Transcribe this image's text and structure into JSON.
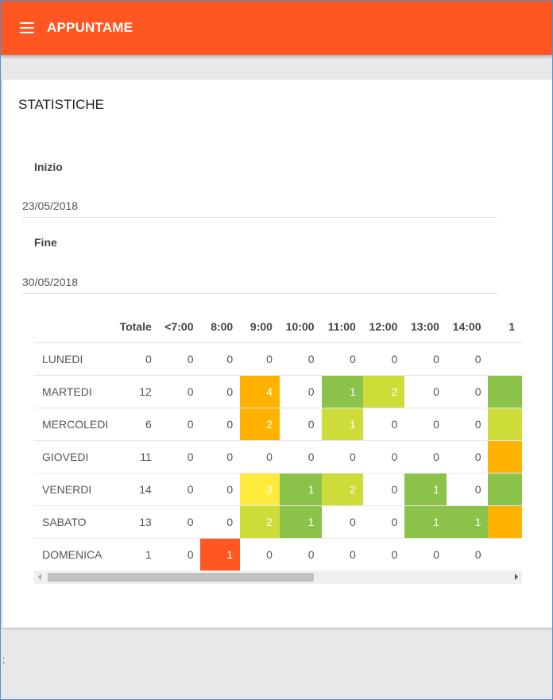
{
  "app": {
    "title": "APPUNTAME",
    "menu_icon": "hamburger-menu-icon"
  },
  "card": {
    "title": "STATISTICHE"
  },
  "form": {
    "start": {
      "label": "Inizio",
      "value": "23/05/2018"
    },
    "end": {
      "label": "Fine",
      "value": "30/05/2018"
    }
  },
  "table": {
    "headers": [
      "",
      "Totale",
      "<7:00",
      "8:00",
      "9:00",
      "10:00",
      "11:00",
      "12:00",
      "13:00",
      "14:00",
      "1"
    ],
    "rows": [
      {
        "day": "LUNEDI",
        "total": "0",
        "hours": [
          "0",
          "0",
          "0",
          "0",
          "0",
          "0",
          "0",
          "0",
          ""
        ]
      },
      {
        "day": "MARTEDI",
        "total": "12",
        "hours": [
          "0",
          "0",
          "4",
          "0",
          "1",
          "2",
          "0",
          "0",
          ""
        ]
      },
      {
        "day": "MERCOLEDI",
        "total": "6",
        "hours": [
          "0",
          "0",
          "2",
          "0",
          "1",
          "0",
          "0",
          "0",
          ""
        ]
      },
      {
        "day": "GIOVEDI",
        "total": "11",
        "hours": [
          "0",
          "0",
          "0",
          "0",
          "0",
          "0",
          "0",
          "0",
          ""
        ]
      },
      {
        "day": "VENERDI",
        "total": "14",
        "hours": [
          "0",
          "0",
          "3",
          "1",
          "2",
          "0",
          "1",
          "0",
          ""
        ]
      },
      {
        "day": "SABATO",
        "total": "13",
        "hours": [
          "0",
          "0",
          "2",
          "1",
          "0",
          "0",
          "1",
          "1",
          ""
        ]
      },
      {
        "day": "DOMENICA",
        "total": "1",
        "hours": [
          "0",
          "1",
          "0",
          "0",
          "0",
          "0",
          "0",
          "0",
          ""
        ]
      }
    ],
    "cell_colors": [
      [
        null,
        null,
        null,
        null,
        null,
        null,
        null,
        null,
        null
      ],
      [
        null,
        null,
        "#ffb300",
        null,
        "#8bc34a",
        "#cddc39",
        null,
        null,
        "#8bc34a"
      ],
      [
        null,
        null,
        "#ffb300",
        null,
        "#cddc39",
        null,
        null,
        null,
        "#cddc39"
      ],
      [
        null,
        null,
        null,
        null,
        null,
        null,
        null,
        null,
        "#ffb300"
      ],
      [
        null,
        null,
        "#ffeb3b",
        "#8bc34a",
        "#cddc39",
        null,
        "#8bc34a",
        null,
        "#8bc34a"
      ],
      [
        null,
        null,
        "#cddc39",
        "#8bc34a",
        null,
        null,
        "#8bc34a",
        "#8bc34a",
        "#ffb300"
      ],
      [
        null,
        "#ff5722",
        null,
        null,
        null,
        null,
        null,
        null,
        null
      ]
    ]
  },
  "colors": {
    "accent": "#ff5722"
  },
  "footer": {
    "mark": ";"
  }
}
